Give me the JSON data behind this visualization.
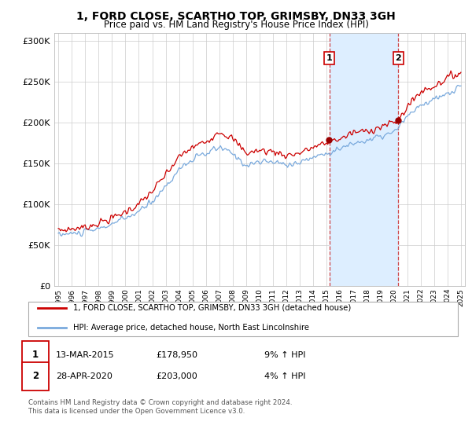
{
  "title": "1, FORD CLOSE, SCARTHO TOP, GRIMSBY, DN33 3GH",
  "subtitle": "Price paid vs. HM Land Registry's House Price Index (HPI)",
  "bg_color": "#ffffff",
  "plot_bg_color": "#ffffff",
  "grid_color": "#cccccc",
  "hpi_line_color": "#7aaadd",
  "price_color": "#cc0000",
  "shade_color": "#ddeeff",
  "transaction1_year": 2015.2,
  "transaction1_price_val": 178950,
  "transaction1_date": "13-MAR-2015",
  "transaction1_hpi_text": "9% ↑ HPI",
  "transaction2_year": 2020.33,
  "transaction2_price_val": 203000,
  "transaction2_date": "28-APR-2020",
  "transaction2_hpi_text": "4% ↑ HPI",
  "legend_label1": "1, FORD CLOSE, SCARTHO TOP, GRIMSBY, DN33 3GH (detached house)",
  "legend_label2": "HPI: Average price, detached house, North East Lincolnshire",
  "footer": "Contains HM Land Registry data © Crown copyright and database right 2024.\nThis data is licensed under the Open Government Licence v3.0.",
  "ylim": [
    0,
    310000
  ],
  "yticks": [
    0,
    50000,
    100000,
    150000,
    200000,
    250000,
    300000
  ],
  "ytick_labels": [
    "£0",
    "£50K",
    "£100K",
    "£150K",
    "£200K",
    "£250K",
    "£300K"
  ]
}
